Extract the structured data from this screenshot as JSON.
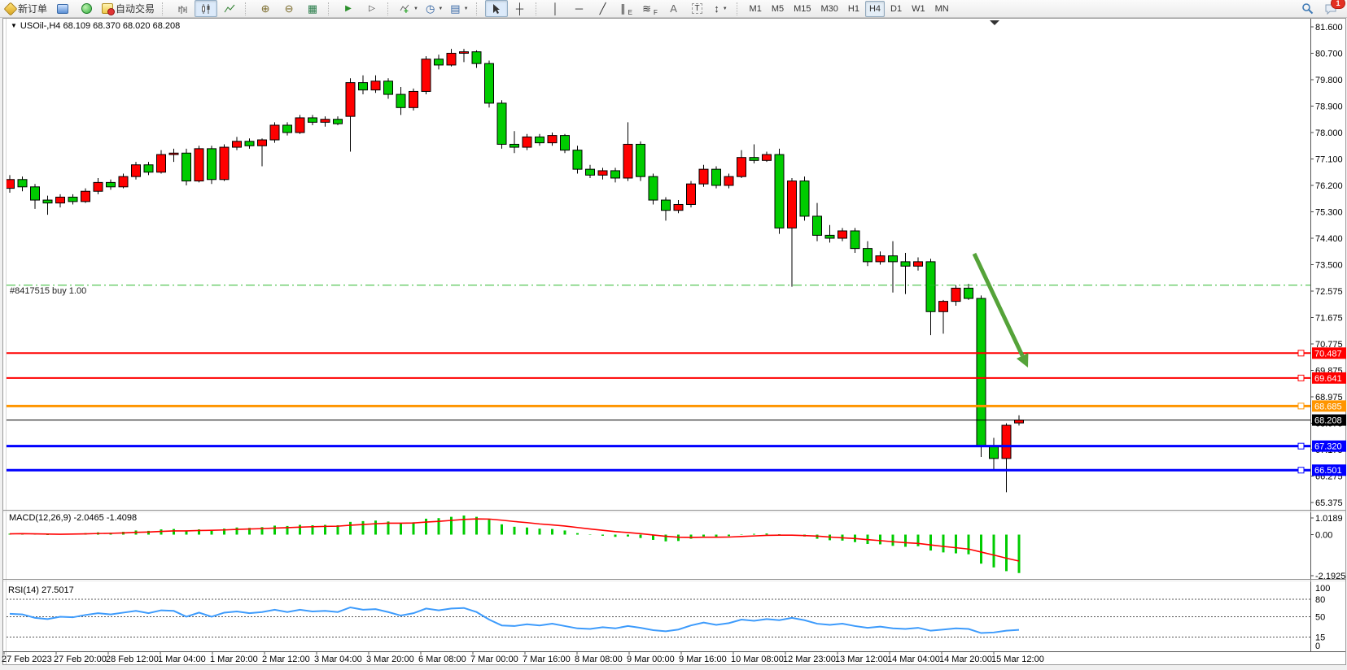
{
  "toolbar": {
    "new_order_label": "新订单",
    "autotrading_label": "自动交易",
    "timeframe_buttons": [
      "M1",
      "M5",
      "M15",
      "M30",
      "H1",
      "H4",
      "D1",
      "W1",
      "MN"
    ],
    "active_timeframe": "H4",
    "notification_count": "1",
    "icons": {
      "zoom_in": "⊕",
      "zoom_out": "⊖",
      "tile_windows": "▦",
      "auto_scroll": "▶",
      "chart_shift": "▷",
      "indicator_plus": "+",
      "clock": "◷",
      "template": "▤",
      "crosshair": "┼",
      "vertical_line": "│",
      "horizontal_line": "─",
      "trend_line": "╱",
      "channel": "∥",
      "channel_sub": "E",
      "fibonacci": "≋",
      "fibonacci_sub": "F",
      "text": "A",
      "text_label": "T",
      "arrows_tool": "↕",
      "dropdown": "▼"
    }
  },
  "window": {
    "title_arrow": "▼",
    "title": "USOil-,H4  68.109 68.370 68.020 68.208"
  },
  "chart_data": {
    "type": "candlestick",
    "symbol": "USOil-",
    "period": "H4",
    "ohlc": {
      "open": 68.109,
      "high": 68.37,
      "low": 68.02,
      "close": 68.208
    },
    "up_color": "#ff0000",
    "down_color": "#00cc00",
    "price_ticks": [
      "81.600",
      "80.700",
      "79.800",
      "78.900",
      "78.000",
      "77.100",
      "76.200",
      "75.300",
      "74.400",
      "73.500",
      "72.575",
      "71.675",
      "70.775",
      "69.875",
      "68.975",
      "68.075",
      "67.175",
      "66.275",
      "65.375"
    ],
    "time_ticks": [
      "27 Feb 2023",
      "27 Feb 20:00",
      "28 Feb 12:00",
      "1 Mar 04:00",
      "1 Mar 20:00",
      "2 Mar 12:00",
      "3 Mar 04:00",
      "3 Mar 20:00",
      "6 Mar 08:00",
      "7 Mar 00:00",
      "7 Mar 16:00",
      "8 Mar 08:00",
      "9 Mar 00:00",
      "9 Mar 16:00",
      "10 Mar 08:00",
      "12 Mar 23:00",
      "13 Mar 12:00",
      "14 Mar 04:00",
      "14 Mar 20:00",
      "15 Mar 12:00"
    ],
    "candles": [
      [
        76.1,
        76.55,
        75.95,
        76.4
      ],
      [
        76.4,
        76.5,
        76.0,
        76.15
      ],
      [
        76.15,
        76.25,
        75.4,
        75.7
      ],
      [
        75.7,
        75.85,
        75.2,
        75.6
      ],
      [
        75.6,
        75.9,
        75.45,
        75.8
      ],
      [
        75.8,
        75.9,
        75.55,
        75.65
      ],
      [
        75.65,
        76.1,
        75.6,
        76.0
      ],
      [
        76.0,
        76.45,
        75.9,
        76.3
      ],
      [
        76.3,
        76.4,
        76.05,
        76.15
      ],
      [
        76.15,
        76.6,
        76.1,
        76.5
      ],
      [
        76.5,
        77.0,
        76.4,
        76.9
      ],
      [
        76.9,
        77.0,
        76.55,
        76.65
      ],
      [
        76.65,
        77.4,
        76.6,
        77.25
      ],
      [
        77.25,
        77.45,
        77.0,
        77.3
      ],
      [
        77.3,
        77.45,
        76.2,
        76.35
      ],
      [
        76.35,
        77.55,
        76.3,
        77.45
      ],
      [
        77.45,
        77.55,
        76.25,
        76.4
      ],
      [
        76.4,
        77.6,
        76.35,
        77.5
      ],
      [
        77.5,
        77.85,
        77.4,
        77.7
      ],
      [
        77.7,
        77.8,
        77.45,
        77.55
      ],
      [
        77.55,
        77.8,
        76.85,
        77.75
      ],
      [
        77.75,
        78.35,
        77.65,
        78.25
      ],
      [
        78.25,
        78.35,
        77.9,
        78.0
      ],
      [
        78.0,
        78.6,
        77.95,
        78.5
      ],
      [
        78.5,
        78.6,
        78.25,
        78.35
      ],
      [
        78.35,
        78.55,
        78.2,
        78.45
      ],
      [
        78.45,
        78.55,
        78.25,
        78.3
      ],
      [
        78.55,
        79.85,
        77.35,
        79.7
      ],
      [
        79.7,
        79.95,
        79.3,
        79.45
      ],
      [
        79.45,
        79.95,
        79.35,
        79.75
      ],
      [
        79.75,
        79.85,
        79.15,
        79.3
      ],
      [
        79.3,
        79.55,
        78.6,
        78.85
      ],
      [
        78.85,
        79.5,
        78.75,
        79.4
      ],
      [
        79.4,
        80.6,
        79.3,
        80.5
      ],
      [
        80.5,
        80.65,
        80.15,
        80.3
      ],
      [
        80.3,
        80.85,
        80.25,
        80.7
      ],
      [
        80.7,
        80.85,
        80.4,
        80.75
      ],
      [
        80.75,
        80.8,
        80.2,
        80.35
      ],
      [
        80.35,
        80.45,
        78.85,
        79.0
      ],
      [
        79.0,
        79.1,
        77.45,
        77.6
      ],
      [
        77.6,
        78.05,
        77.3,
        77.5
      ],
      [
        77.5,
        77.95,
        77.4,
        77.85
      ],
      [
        77.85,
        77.95,
        77.55,
        77.65
      ],
      [
        77.65,
        78.0,
        77.55,
        77.9
      ],
      [
        77.9,
        77.95,
        77.3,
        77.4
      ],
      [
        77.4,
        77.55,
        76.6,
        76.75
      ],
      [
        76.75,
        76.9,
        76.45,
        76.55
      ],
      [
        76.55,
        76.8,
        76.4,
        76.7
      ],
      [
        76.7,
        76.8,
        76.3,
        76.45
      ],
      [
        76.45,
        78.35,
        76.35,
        77.6
      ],
      [
        77.6,
        77.7,
        76.35,
        76.5
      ],
      [
        76.5,
        76.6,
        75.55,
        75.7
      ],
      [
        75.7,
        75.8,
        75.0,
        75.35
      ],
      [
        75.35,
        75.7,
        75.25,
        75.55
      ],
      [
        75.55,
        76.35,
        75.45,
        76.25
      ],
      [
        76.25,
        76.9,
        76.15,
        76.75
      ],
      [
        76.75,
        76.85,
        76.1,
        76.2
      ],
      [
        76.2,
        76.6,
        76.1,
        76.5
      ],
      [
        76.5,
        77.4,
        76.45,
        77.15
      ],
      [
        77.15,
        77.6,
        76.95,
        77.05
      ],
      [
        77.05,
        77.35,
        77.0,
        77.25
      ],
      [
        77.25,
        77.45,
        74.55,
        74.75
      ],
      [
        74.75,
        76.45,
        72.75,
        76.35
      ],
      [
        76.35,
        76.5,
        75.0,
        75.15
      ],
      [
        75.15,
        75.6,
        74.3,
        74.5
      ],
      [
        74.5,
        74.85,
        74.25,
        74.4
      ],
      [
        74.4,
        74.75,
        74.3,
        74.65
      ],
      [
        74.65,
        74.75,
        73.9,
        74.05
      ],
      [
        74.05,
        74.3,
        73.45,
        73.6
      ],
      [
        73.6,
        73.95,
        73.5,
        73.8
      ],
      [
        73.8,
        74.3,
        72.55,
        73.6
      ],
      [
        73.6,
        73.9,
        72.5,
        73.45
      ],
      [
        73.45,
        73.75,
        73.3,
        73.6
      ],
      [
        73.6,
        73.7,
        71.1,
        71.9
      ],
      [
        71.9,
        72.3,
        71.15,
        72.25
      ],
      [
        72.25,
        72.8,
        72.1,
        72.7
      ],
      [
        72.7,
        72.85,
        72.3,
        72.35
      ],
      [
        72.35,
        72.45,
        66.95,
        67.3
      ],
      [
        67.3,
        67.6,
        66.5,
        66.9
      ],
      [
        66.9,
        68.1,
        65.75,
        68.03
      ],
      [
        68.11,
        68.37,
        68.02,
        68.21
      ]
    ],
    "hlines": [
      {
        "price": 70.487,
        "label": "70.487",
        "color": "#ff0000",
        "width": 2
      },
      {
        "price": 69.641,
        "label": "69.641",
        "color": "#ff0000",
        "width": 2
      },
      {
        "price": 68.685,
        "label": "68.685",
        "color": "#ff9500",
        "width": 3
      },
      {
        "price": 67.32,
        "label": "67.320",
        "color": "#0000ff",
        "width": 3
      },
      {
        "price": 66.501,
        "label": "66.501",
        "color": "#0000ff",
        "width": 3
      }
    ],
    "current_price": {
      "label": "68.208",
      "price": 68.208,
      "color": "#000000"
    },
    "order_line": {
      "label": "#8417515 buy 1.00",
      "price": 72.8,
      "color": "#2eb82e"
    },
    "trend_arrow": {
      "from": [
        1197,
        312
      ],
      "to": [
        1263,
        452
      ],
      "color": "#55a339"
    },
    "macd": {
      "label": "MACD(12,26,9) -2.0465 -1.4098",
      "ticks": [
        "1.0189",
        "0.00",
        "-2.1925"
      ],
      "hist_color": "#00cc00",
      "signal_color": "#ff0000",
      "histogram": [
        0.05,
        0.06,
        0.02,
        -0.02,
        0,
        0.03,
        0.08,
        0.12,
        0.1,
        0.15,
        0.22,
        0.2,
        0.28,
        0.3,
        0.22,
        0.28,
        0.25,
        0.32,
        0.38,
        0.36,
        0.4,
        0.48,
        0.46,
        0.52,
        0.5,
        0.52,
        0.5,
        0.68,
        0.72,
        0.75,
        0.7,
        0.62,
        0.66,
        0.85,
        0.88,
        0.95,
        1.02,
        0.95,
        0.8,
        0.55,
        0.42,
        0.38,
        0.32,
        0.3,
        0.22,
        0.08,
        -0.02,
        -0.06,
        -0.12,
        -0.1,
        -0.18,
        -0.28,
        -0.36,
        -0.34,
        -0.22,
        -0.1,
        -0.12,
        -0.08,
        0.02,
        0.04,
        0.06,
        0.02,
        -0.05,
        -0.1,
        -0.22,
        -0.3,
        -0.32,
        -0.4,
        -0.5,
        -0.52,
        -0.6,
        -0.65,
        -0.62,
        -0.85,
        -0.95,
        -1.0,
        -1.05,
        -1.55,
        -1.75,
        -1.95,
        -2.05
      ],
      "signal": [
        0.04,
        0.05,
        0.04,
        0.03,
        0.02,
        0.03,
        0.04,
        0.06,
        0.07,
        0.09,
        0.12,
        0.14,
        0.17,
        0.2,
        0.2,
        0.22,
        0.23,
        0.25,
        0.28,
        0.3,
        0.32,
        0.35,
        0.37,
        0.4,
        0.42,
        0.44,
        0.45,
        0.5,
        0.54,
        0.58,
        0.61,
        0.61,
        0.62,
        0.67,
        0.71,
        0.76,
        0.81,
        0.84,
        0.83,
        0.77,
        0.7,
        0.64,
        0.57,
        0.52,
        0.46,
        0.38,
        0.3,
        0.23,
        0.16,
        0.11,
        0.05,
        -0.02,
        -0.09,
        -0.14,
        -0.15,
        -0.14,
        -0.14,
        -0.13,
        -0.1,
        -0.07,
        -0.04,
        -0.03,
        -0.03,
        -0.05,
        -0.08,
        -0.13,
        -0.17,
        -0.21,
        -0.27,
        -0.32,
        -0.38,
        -0.43,
        -0.47,
        -0.55,
        -0.63,
        -0.7,
        -0.77,
        -0.93,
        -1.09,
        -1.26,
        -1.41
      ]
    },
    "rsi": {
      "label": "RSI(14) 27.5017",
      "ticks": [
        "100",
        "80",
        "50",
        "15",
        "0"
      ],
      "levels": [
        80,
        50,
        15
      ],
      "color": "#3d9bfc",
      "values": [
        55,
        54,
        48,
        46,
        50,
        49,
        53,
        56,
        54,
        57,
        60,
        56,
        61,
        60,
        50,
        57,
        50,
        57,
        59,
        56,
        58,
        62,
        58,
        62,
        59,
        60,
        58,
        66,
        62,
        63,
        58,
        52,
        56,
        64,
        61,
        64,
        65,
        58,
        45,
        35,
        34,
        37,
        35,
        38,
        34,
        30,
        29,
        32,
        30,
        34,
        31,
        27,
        25,
        28,
        35,
        40,
        36,
        39,
        45,
        43,
        46,
        44,
        48,
        44,
        38,
        36,
        38,
        34,
        31,
        33,
        30,
        29,
        31,
        26,
        28,
        30,
        29,
        22,
        23,
        26,
        27.5
      ]
    }
  }
}
